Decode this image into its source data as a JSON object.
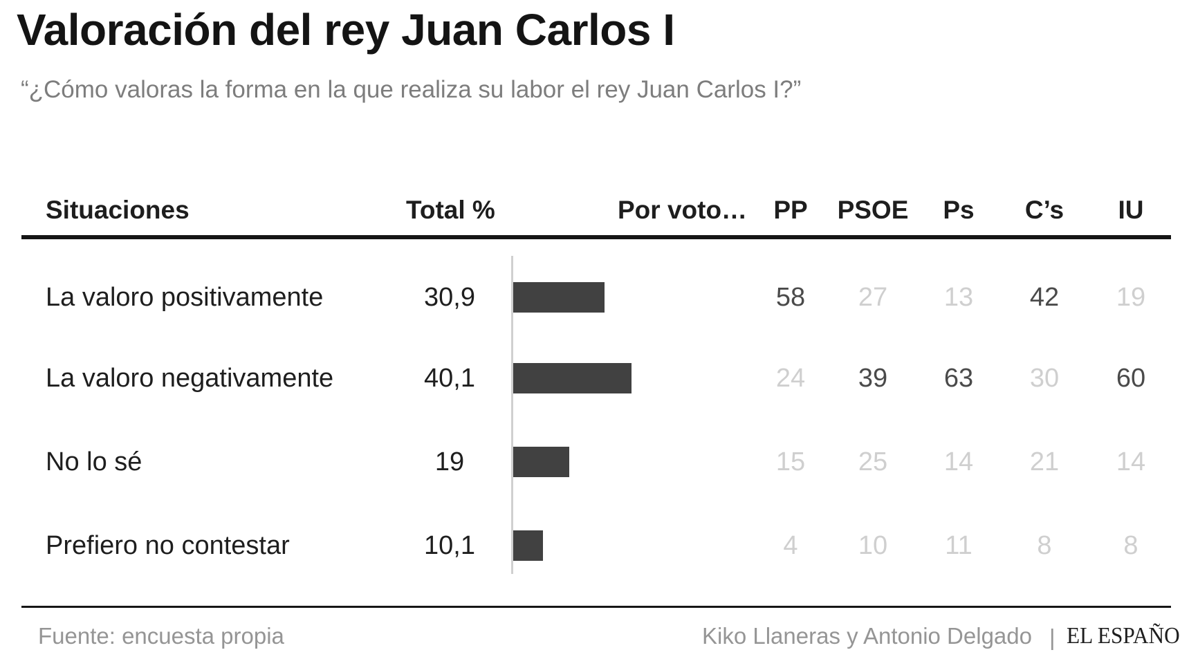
{
  "title": "Valoración del rey Juan Carlos I",
  "subtitle": "“¿Cómo valoras la forma en la que realiza su labor el rey Juan Carlos I?”",
  "headers": {
    "situations": "Situaciones",
    "total": "Total %",
    "by_vote": "Por voto…",
    "parties": [
      "PP",
      "PSOE",
      "Ps",
      "C’s",
      "IU"
    ]
  },
  "chart_data": {
    "type": "bar",
    "orientation": "horizontal",
    "categories": [
      "La valoro positivamente",
      "La valoro negativamente",
      "No lo sé",
      "Prefiero no contestar"
    ],
    "total_labels": [
      "30,9",
      "40,1",
      "19",
      "10,1"
    ],
    "values": [
      30.9,
      40.1,
      19,
      10.1
    ],
    "by_party": {
      "parties": [
        "PP",
        "PSOE",
        "Ps",
        "C’s",
        "IU"
      ],
      "rows": [
        [
          58,
          27,
          13,
          42,
          19
        ],
        [
          24,
          39,
          63,
          30,
          60
        ],
        [
          15,
          25,
          14,
          21,
          14
        ],
        [
          4,
          10,
          11,
          8,
          8
        ]
      ],
      "highlight_max_per_party": true
    },
    "bar_color": "#414141",
    "highlight_color": "#4a4a4a",
    "muted_color": "#cfcfcf"
  },
  "footer": {
    "source": "Fuente: encuesta propia",
    "authors": "Kiko Llaneras y Antonio Delgado",
    "separator": "|",
    "brand": "EL ESPAÑOL"
  }
}
